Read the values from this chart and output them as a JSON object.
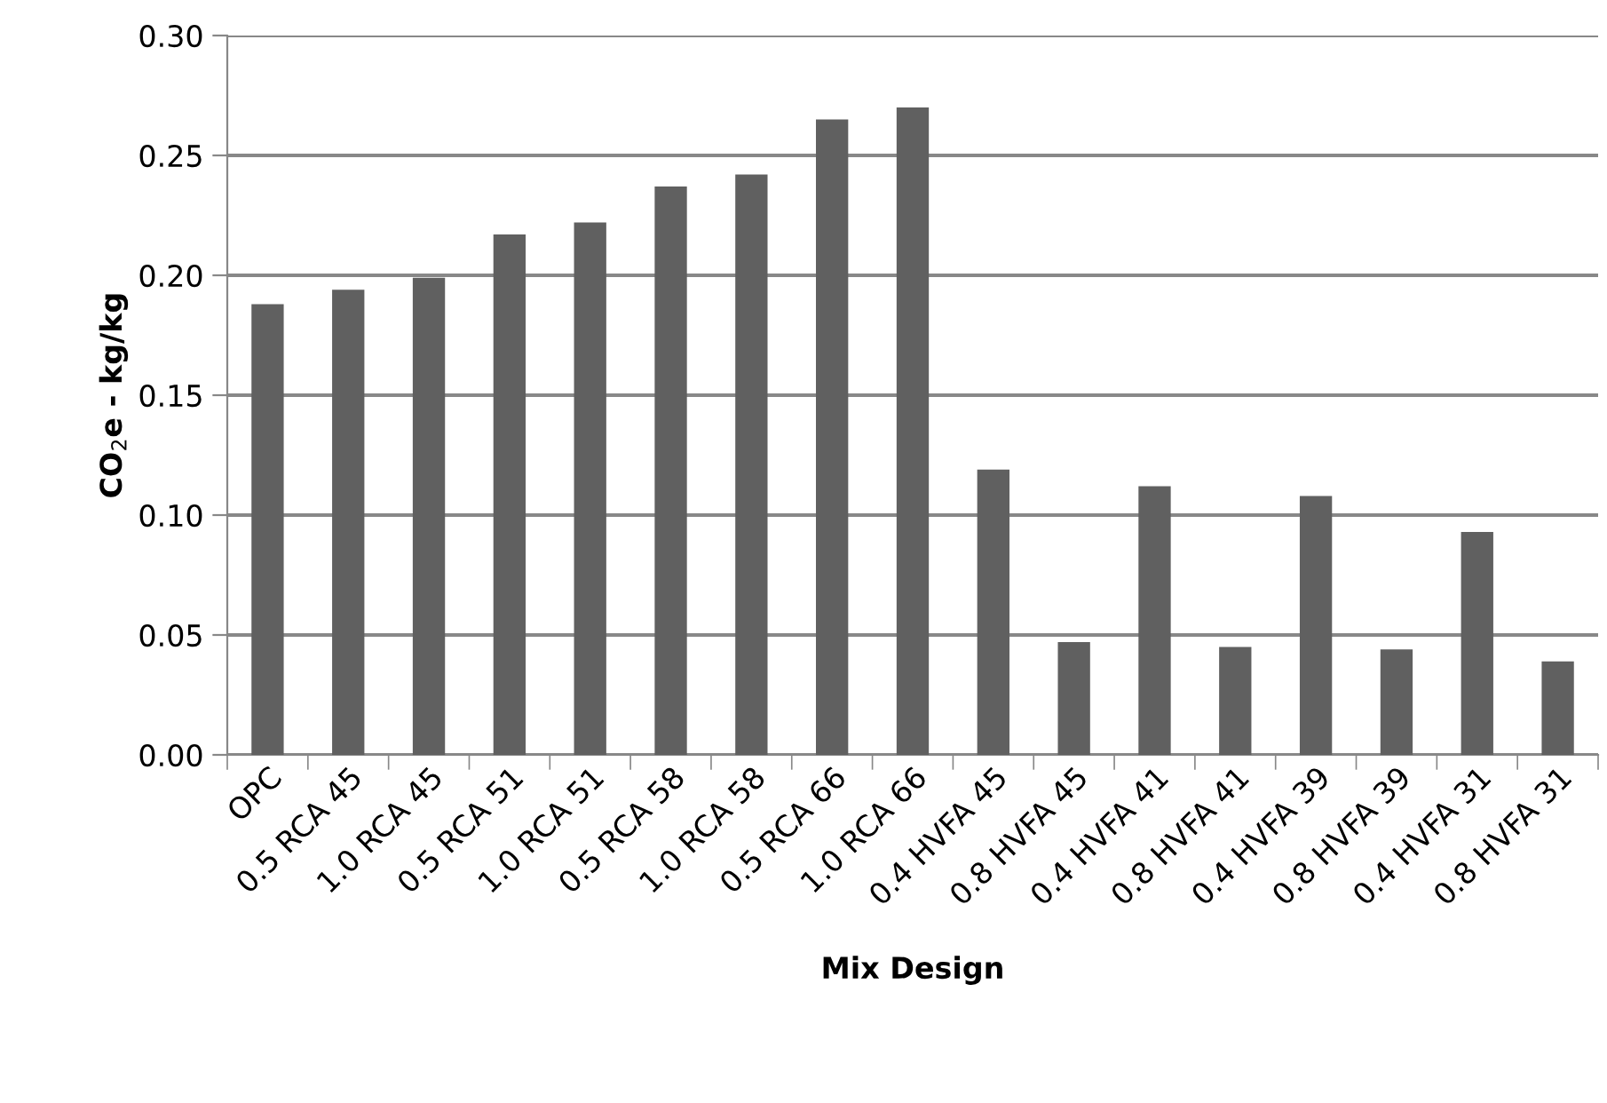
{
  "chart_data": {
    "type": "bar",
    "xlabel": "Mix Design",
    "ylabel": "CO$_{2}$e - kg/kg",
    "categories": [
      "OPC",
      "0.5 RCA 45",
      "1.0 RCA 45",
      "0.5 RCA 51",
      "1.0 RCA 51",
      "0.5 RCA 58",
      "1.0 RCA 58",
      "0.5 RCA 66",
      "1.0 RCA 66",
      "0.4 HVFA 45",
      "0.8 HVFA 45",
      "0.4 HVFA 41",
      "0.8 HVFA 41",
      "0.4 HVFA 39",
      "0.8 HVFA 39",
      "0.4 HVFA 31",
      "0.8 HVFA 31"
    ],
    "values": [
      0.188,
      0.194,
      0.199,
      0.217,
      0.222,
      0.237,
      0.242,
      0.265,
      0.27,
      0.119,
      0.047,
      0.112,
      0.045,
      0.108,
      0.044,
      0.093,
      0.039
    ],
    "color": "#606060",
    "ylim": [
      0,
      0.3
    ],
    "yticks": [
      {
        "value": 0,
        "label": "0.00"
      },
      {
        "value": 0.05,
        "label": "0.05"
      },
      {
        "value": 0.1,
        "label": "0.10"
      },
      {
        "value": 0.15,
        "label": "0.15"
      },
      {
        "value": 0.2,
        "label": "0.20"
      },
      {
        "value": 0.25,
        "label": "0.25"
      },
      {
        "value": 0.3,
        "label": "0.30"
      }
    ],
    "grid": "y"
  }
}
